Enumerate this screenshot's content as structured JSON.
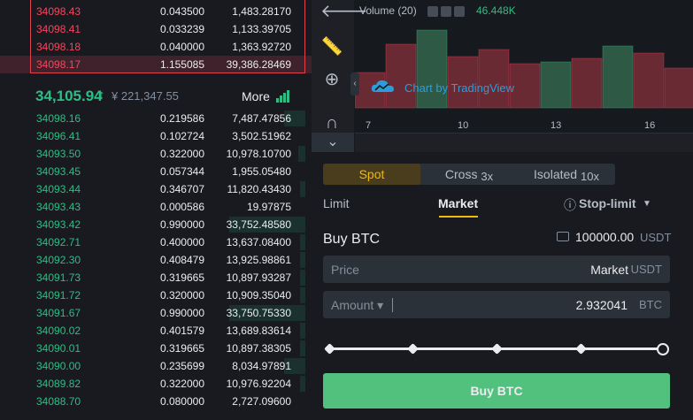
{
  "orderbook": {
    "asks": [
      {
        "price": "34098.43",
        "qty": "0.043500",
        "total": "1,483.28170",
        "fill": 0
      },
      {
        "price": "34098.41",
        "qty": "0.033239",
        "total": "1,133.39705",
        "fill": 0
      },
      {
        "price": "34098.18",
        "qty": "0.040000",
        "total": "1,363.92720",
        "fill": 0
      },
      {
        "price": "34098.17",
        "qty": "1.155085",
        "total": "39,386.28469",
        "fill": 0
      }
    ],
    "mid": {
      "price": "34,105.94",
      "arrow": "↑",
      "fiat": "¥ 221,347.55",
      "more": "More"
    },
    "bids": [
      {
        "price": "34098.16",
        "qty": "0.219586",
        "total": "7,487.47856",
        "fill": 0.27
      },
      {
        "price": "34096.41",
        "qty": "0.102724",
        "total": "3,502.51962",
        "fill": 0
      },
      {
        "price": "34093.50",
        "qty": "0.322000",
        "total": "10,978.10700",
        "fill": 0.09
      },
      {
        "price": "34093.45",
        "qty": "0.057344",
        "total": "1,955.05480",
        "fill": 0
      },
      {
        "price": "34093.44",
        "qty": "0.346707",
        "total": "11,820.43430",
        "fill": 0.07
      },
      {
        "price": "34093.43",
        "qty": "0.000586",
        "total": "19.97875",
        "fill": 0
      },
      {
        "price": "34093.42",
        "qty": "0.990000",
        "total": "33,752.48580",
        "fill": 0.98
      },
      {
        "price": "34092.71",
        "qty": "0.400000",
        "total": "13,637.08400",
        "fill": 0.07
      },
      {
        "price": "34092.30",
        "qty": "0.408479",
        "total": "13,925.98861",
        "fill": 0.07
      },
      {
        "price": "34091.73",
        "qty": "0.319665",
        "total": "10,897.93287",
        "fill": 0.07
      },
      {
        "price": "34091.72",
        "qty": "0.320000",
        "total": "10,909.35040",
        "fill": 0.07
      },
      {
        "price": "34091.67",
        "qty": "0.990000",
        "total": "33,750.75330",
        "fill": 0.98
      },
      {
        "price": "34090.02",
        "qty": "0.401579",
        "total": "13,689.83614",
        "fill": 0.07
      },
      {
        "price": "34090.01",
        "qty": "0.319665",
        "total": "10,897.38305",
        "fill": 0.07
      },
      {
        "price": "34090.00",
        "qty": "0.235699",
        "total": "8,034.97891",
        "fill": 0.27
      },
      {
        "price": "34089.82",
        "qty": "0.322000",
        "total": "10,976.92204",
        "fill": 0.07
      },
      {
        "price": "34088.70",
        "qty": "0.080000",
        "total": "2,727.09600",
        "fill": 0
      }
    ]
  },
  "chart": {
    "volume_label": "Volume (20)",
    "volume_value": "46.448K",
    "tradingview_label": "Chart by TradingView",
    "x_ticks": [
      "7",
      "10",
      "13",
      "16"
    ],
    "up_color": "#2ebd85",
    "down_color": "#f6465d",
    "volume_bars": [
      {
        "dir": "down",
        "level": 0.4
      },
      {
        "dir": "down",
        "level": 0.72
      },
      {
        "dir": "up",
        "level": 0.88
      },
      {
        "dir": "down",
        "level": 0.58
      },
      {
        "dir": "down",
        "level": 0.66
      },
      {
        "dir": "down",
        "level": 0.5
      },
      {
        "dir": "up",
        "level": 0.52
      },
      {
        "dir": "down",
        "level": 0.56
      },
      {
        "dir": "up",
        "level": 0.7
      },
      {
        "dir": "down",
        "level": 0.62
      },
      {
        "dir": "down",
        "level": 0.45
      }
    ]
  },
  "trade": {
    "tabs": [
      {
        "label": "Spot",
        "mult": ""
      },
      {
        "label": "Cross",
        "mult": "3x"
      },
      {
        "label": "Isolated",
        "mult": "10x"
      }
    ],
    "order_types": {
      "limit": "Limit",
      "market": "Market",
      "stop_limit": "Stop-limit"
    },
    "buy_title": "Buy BTC",
    "balance": "100000.00",
    "balance_unit": "USDT",
    "price_label": "Price",
    "price_value": "Market",
    "price_unit": "USDT",
    "amount_label": "Amount ▾",
    "amount_value": "2.932041",
    "amount_unit": "BTC",
    "slider_percent": 100,
    "buy_button": "Buy BTC",
    "buy_color": "#52c17d"
  }
}
